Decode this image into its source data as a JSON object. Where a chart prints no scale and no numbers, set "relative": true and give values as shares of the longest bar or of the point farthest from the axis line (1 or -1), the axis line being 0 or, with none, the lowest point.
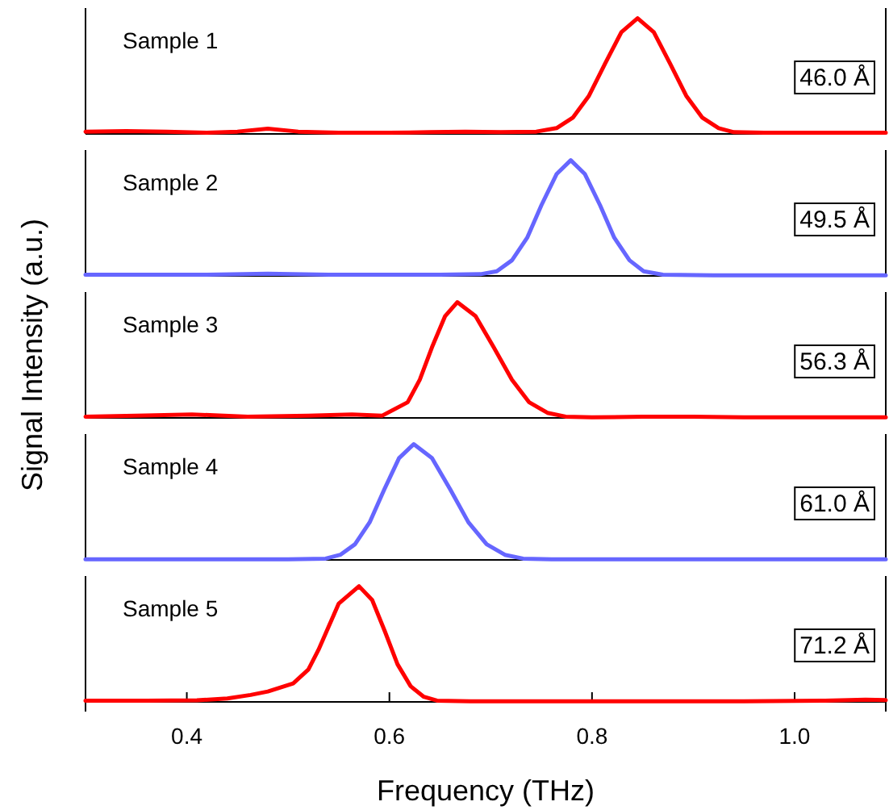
{
  "chart_data": [
    {
      "type": "line",
      "relative": true,
      "tick_labels": false,
      "xlim": [
        0.3,
        1.09
      ],
      "annotations": [
        "Sample 1",
        "46.0 Å"
      ],
      "x": [
        0.3,
        0.34,
        0.38,
        0.42,
        0.45,
        0.48,
        0.51,
        0.55,
        0.6,
        0.64,
        0.675,
        0.71,
        0.745,
        0.765,
        0.781,
        0.797,
        0.813,
        0.829,
        0.845,
        0.861,
        0.877,
        0.893,
        0.909,
        0.925,
        0.94,
        0.97,
        1.0,
        1.04,
        1.09
      ],
      "series": [
        {
          "color": "#ff0000",
          "values": [
            0.02,
            0.025,
            0.02,
            0.01,
            0.02,
            0.045,
            0.02,
            0.01,
            0.01,
            0.015,
            0.02,
            0.015,
            0.02,
            0.05,
            0.14,
            0.33,
            0.61,
            0.88,
            1,
            0.88,
            0.61,
            0.33,
            0.14,
            0.05,
            0.015,
            0.01,
            0.01,
            0.01,
            0.01
          ]
        }
      ]
    },
    {
      "type": "line",
      "relative": true,
      "tick_labels": false,
      "xlim": [
        0.3,
        1.09
      ],
      "annotations": [
        "Sample 2",
        "49.5 Å"
      ],
      "x": [
        0.3,
        0.36,
        0.42,
        0.48,
        0.54,
        0.6,
        0.65,
        0.69,
        0.706,
        0.721,
        0.736,
        0.75,
        0.765,
        0.779,
        0.793,
        0.808,
        0.822,
        0.837,
        0.851,
        0.87,
        0.92,
        0.98,
        1.04,
        1.09
      ],
      "series": [
        {
          "color": "#6666ff",
          "values": [
            0.01,
            0.01,
            0.01,
            0.02,
            0.01,
            0.01,
            0.01,
            0.015,
            0.04,
            0.135,
            0.33,
            0.61,
            0.88,
            1,
            0.88,
            0.61,
            0.33,
            0.135,
            0.04,
            0.01,
            0.005,
            0.005,
            0.005,
            0.005
          ]
        }
      ]
    },
    {
      "type": "line",
      "relative": true,
      "tick_labels": false,
      "ylabel": "Signal Intensity (a.u.)",
      "xlim": [
        0.3,
        1.09
      ],
      "annotations": [
        "Sample 3",
        "56.3 Å"
      ],
      "x": [
        0.3,
        0.35,
        0.405,
        0.46,
        0.52,
        0.563,
        0.593,
        0.618,
        0.63,
        0.642,
        0.655,
        0.667,
        0.685,
        0.703,
        0.721,
        0.738,
        0.756,
        0.774,
        0.8,
        0.85,
        0.9,
        0.95,
        1.0,
        1.09
      ],
      "series": [
        {
          "color": "#ff0000",
          "values": [
            0.01,
            0.02,
            0.03,
            0.01,
            0.02,
            0.03,
            0.02,
            0.135,
            0.33,
            0.61,
            0.88,
            1,
            0.88,
            0.61,
            0.33,
            0.135,
            0.044,
            0.011,
            0.005,
            0.01,
            0.01,
            0.005,
            0.005,
            0.005
          ]
        }
      ]
    },
    {
      "type": "line",
      "relative": true,
      "tick_labels": false,
      "xlim": [
        0.3,
        1.09
      ],
      "annotations": [
        "Sample 4",
        "61.0 Å"
      ],
      "x": [
        0.3,
        0.4,
        0.5,
        0.537,
        0.5515,
        0.566,
        0.5805,
        0.595,
        0.6095,
        0.624,
        0.642,
        0.66,
        0.678,
        0.696,
        0.714,
        0.732,
        0.76,
        0.85,
        0.95,
        1.09
      ],
      "series": [
        {
          "color": "#6666ff",
          "values": [
            0.005,
            0.005,
            0.005,
            0.011,
            0.044,
            0.135,
            0.325,
            0.61,
            0.88,
            1,
            0.88,
            0.61,
            0.325,
            0.135,
            0.044,
            0.011,
            0.005,
            0.005,
            0.005,
            0.005
          ]
        }
      ]
    },
    {
      "type": "line",
      "relative": true,
      "tick_labels": "x",
      "xlabel": "Frequency (THz)",
      "xlim": [
        0.3,
        1.09
      ],
      "xticks": [
        {
          "value": 0.4,
          "label": "0.4"
        },
        {
          "value": 0.6,
          "label": "0.6"
        },
        {
          "value": 0.8,
          "label": "0.8"
        },
        {
          "value": 1.0,
          "label": "1.0"
        }
      ],
      "annotations": [
        "Sample 5",
        "71.2 Å"
      ],
      "x": [
        0.3,
        0.36,
        0.41,
        0.44,
        0.463,
        0.48,
        0.505,
        0.52,
        0.53,
        0.54,
        0.55,
        0.57,
        0.583,
        0.5955,
        0.608,
        0.621,
        0.634,
        0.647,
        0.68,
        0.75,
        0.85,
        0.95,
        1.03,
        1.07,
        1.09
      ],
      "series": [
        {
          "color": "#ff0000",
          "values": [
            0.01,
            0.01,
            0.014,
            0.03,
            0.06,
            0.09,
            0.16,
            0.28,
            0.45,
            0.65,
            0.85,
            1,
            0.88,
            0.61,
            0.325,
            0.135,
            0.044,
            0.011,
            0.005,
            0.005,
            0.005,
            0.005,
            0.01,
            0.02,
            0.015
          ]
        }
      ]
    }
  ]
}
